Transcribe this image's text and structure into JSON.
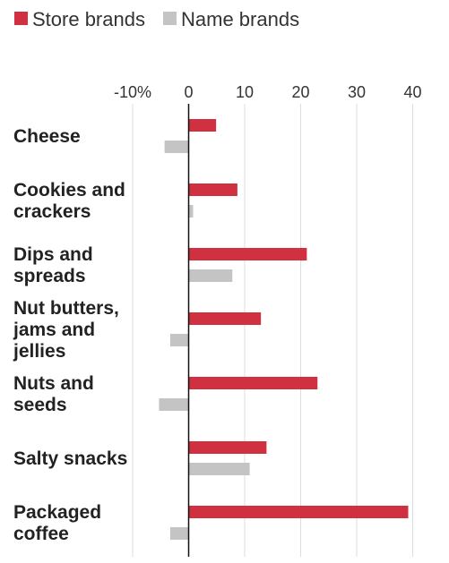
{
  "chart_data": {
    "type": "bar",
    "orientation": "horizontal",
    "categories": [
      [
        "Cheese"
      ],
      [
        "Cookies and",
        "crackers"
      ],
      [
        "Dips and",
        "spreads"
      ],
      [
        "Nut butters,",
        "jams and",
        "jellies"
      ],
      [
        "Nuts and",
        "seeds"
      ],
      [
        "Salty snacks"
      ],
      [
        "Packaged",
        "coffee"
      ]
    ],
    "series": [
      {
        "name": "Store brands",
        "color": "#d0303f",
        "values": [
          4.9,
          8.7,
          21.1,
          12.9,
          23.0,
          13.9,
          39.2
        ]
      },
      {
        "name": "Name brands",
        "color": "#c4c4c4",
        "values": [
          -4.3,
          0.8,
          7.8,
          -3.3,
          -5.3,
          10.9,
          -3.3
        ]
      }
    ],
    "xlim": [
      -11,
      41
    ],
    "ticks": [
      {
        "value": -10,
        "label": "-10%"
      },
      {
        "value": 0,
        "label": "0"
      },
      {
        "value": 10,
        "label": "10"
      },
      {
        "value": 20,
        "label": "20"
      },
      {
        "value": 30,
        "label": "30"
      },
      {
        "value": 40,
        "label": "40"
      }
    ],
    "grid": true,
    "legend": "top-left",
    "title": "",
    "xlabel": "",
    "ylabel": ""
  }
}
